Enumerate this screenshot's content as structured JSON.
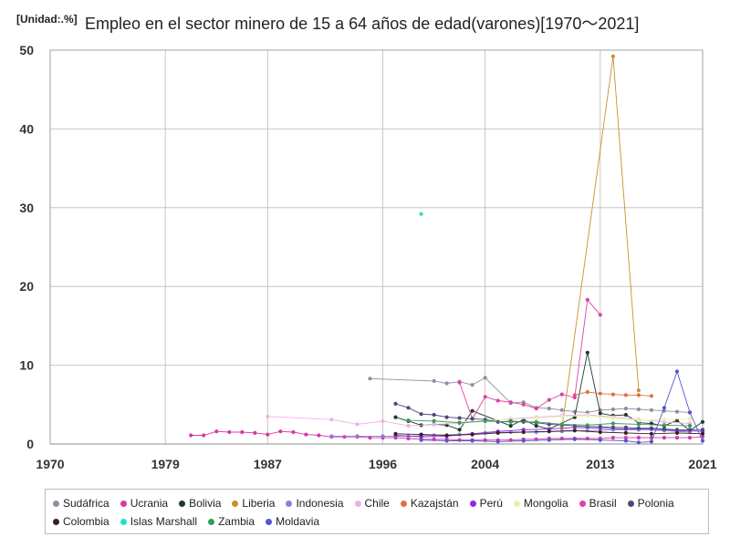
{
  "chart_data": {
    "type": "line",
    "unit_label": "[Unidad:.%]",
    "title": "Empleo en el sector minero de 15 a 64 años de edad(varones)[1970～2021]",
    "xlabel": "",
    "ylabel": "",
    "xlim": [
      1970,
      2021
    ],
    "ylim": [
      0,
      50
    ],
    "xticks": [
      "1970",
      "1979",
      "1987",
      "1996",
      "2004",
      "2013",
      "2021"
    ],
    "yticks": [
      "0",
      "10",
      "20",
      "30",
      "40",
      "50"
    ],
    "grid": true,
    "legend_position": "bottom",
    "series": [
      {
        "name": "Sudáfrica",
        "color": "#8c8fa1",
        "points": [
          [
            1995,
            8.3
          ],
          [
            2000,
            8.0
          ],
          [
            2001,
            7.7
          ],
          [
            2002,
            7.9
          ],
          [
            2003,
            7.5
          ],
          [
            2004,
            8.4
          ],
          [
            2006,
            5.2
          ],
          [
            2007,
            5.3
          ],
          [
            2008,
            4.6
          ],
          [
            2009,
            4.5
          ],
          [
            2010,
            4.3
          ],
          [
            2011,
            4.1
          ],
          [
            2012,
            4.0
          ],
          [
            2013,
            4.3
          ],
          [
            2014,
            4.4
          ],
          [
            2015,
            4.5
          ],
          [
            2016,
            4.4
          ],
          [
            2017,
            4.3
          ],
          [
            2018,
            4.2
          ],
          [
            2019,
            4.1
          ],
          [
            2020,
            4.0
          ]
        ]
      },
      {
        "name": "Ucrania",
        "color": "#d63aa6",
        "points": [
          [
            1981,
            1.1
          ],
          [
            1982,
            1.1
          ],
          [
            1983,
            1.6
          ],
          [
            1984,
            1.5
          ],
          [
            1985,
            1.5
          ],
          [
            1986,
            1.4
          ],
          [
            1987,
            1.2
          ],
          [
            1988,
            1.6
          ],
          [
            1989,
            1.5
          ],
          [
            1990,
            1.2
          ],
          [
            1991,
            1.1
          ],
          [
            1992,
            0.9
          ],
          [
            1993,
            0.9
          ],
          [
            1994,
            0.9
          ],
          [
            1995,
            0.8
          ],
          [
            1996,
            0.8
          ],
          [
            1997,
            0.8
          ],
          [
            1998,
            0.7
          ],
          [
            1999,
            0.6
          ],
          [
            2000,
            0.6
          ],
          [
            2001,
            0.6
          ],
          [
            2002,
            0.5
          ],
          [
            2003,
            0.5
          ],
          [
            2004,
            0.5
          ],
          [
            2005,
            0.5
          ],
          [
            2006,
            0.5
          ],
          [
            2007,
            0.6
          ],
          [
            2008,
            0.6
          ],
          [
            2009,
            0.7
          ],
          [
            2010,
            0.7
          ],
          [
            2011,
            0.7
          ],
          [
            2012,
            0.7
          ],
          [
            2013,
            0.7
          ],
          [
            2014,
            0.8
          ],
          [
            2015,
            0.8
          ],
          [
            2016,
            0.8
          ],
          [
            2017,
            0.8
          ],
          [
            2018,
            0.8
          ],
          [
            2019,
            0.8
          ],
          [
            2020,
            0.8
          ],
          [
            2021,
            0.9
          ]
        ]
      },
      {
        "name": "Bolivia",
        "color": "#1f3a2a",
        "points": [
          [
            1997,
            3.4
          ],
          [
            1998,
            2.9
          ],
          [
            1999,
            2.4
          ],
          [
            2000,
            2.5
          ],
          [
            2001,
            2.4
          ],
          [
            2002,
            1.8
          ],
          [
            2003,
            4.2
          ],
          [
            2006,
            2.3
          ],
          [
            2007,
            3.1
          ],
          [
            2008,
            2.3
          ],
          [
            2009,
            1.9
          ],
          [
            2011,
            3.4
          ],
          [
            2012,
            11.6
          ],
          [
            2013,
            3.9
          ],
          [
            2014,
            3.6
          ],
          [
            2015,
            3.7
          ],
          [
            2016,
            2.7
          ],
          [
            2017,
            2.6
          ],
          [
            2018,
            2.3
          ],
          [
            2019,
            3.0
          ],
          [
            2020,
            1.7
          ],
          [
            2021,
            2.8
          ]
        ]
      },
      {
        "name": "Liberia",
        "color": "#c8902a",
        "points": [
          [
            2010,
            2.0
          ],
          [
            2014,
            49.2
          ],
          [
            2016,
            6.8
          ]
        ]
      },
      {
        "name": "Indonesia",
        "color": "#8a7fd6",
        "points": [
          [
            1992,
            1.0
          ],
          [
            1994,
            1.0
          ],
          [
            1996,
            1.0
          ],
          [
            1998,
            1.0
          ],
          [
            2000,
            1.1
          ],
          [
            2002,
            1.2
          ],
          [
            2004,
            1.4
          ],
          [
            2006,
            1.5
          ],
          [
            2008,
            1.5
          ],
          [
            2010,
            1.6
          ],
          [
            2012,
            1.7
          ],
          [
            2014,
            1.8
          ],
          [
            2016,
            1.8
          ],
          [
            2018,
            1.7
          ],
          [
            2020,
            1.5
          ]
        ]
      },
      {
        "name": "Chile",
        "color": "#f0b0e6",
        "points": [
          [
            1987,
            3.5
          ],
          [
            1992,
            3.1
          ],
          [
            1994,
            2.5
          ],
          [
            1996,
            2.9
          ],
          [
            1998,
            2.3
          ],
          [
            2000,
            2.5
          ],
          [
            2002,
            2.6
          ],
          [
            2004,
            2.9
          ],
          [
            2006,
            3.2
          ],
          [
            2008,
            3.4
          ],
          [
            2010,
            3.6
          ],
          [
            2012,
            3.7
          ],
          [
            2014,
            3.4
          ],
          [
            2016,
            3.1
          ],
          [
            2018,
            2.8
          ],
          [
            2020,
            2.6
          ]
        ]
      },
      {
        "name": "Kazajstán",
        "color": "#e07040",
        "points": [
          [
            2011,
            6.2
          ],
          [
            2012,
            6.6
          ],
          [
            2013,
            6.4
          ],
          [
            2014,
            6.3
          ],
          [
            2015,
            6.2
          ],
          [
            2016,
            6.2
          ],
          [
            2017,
            6.1
          ]
        ]
      },
      {
        "name": "Perú",
        "color": "#8a2be2",
        "points": [
          [
            1997,
            1.1
          ],
          [
            1999,
            0.9
          ],
          [
            2001,
            1.0
          ],
          [
            2003,
            1.3
          ],
          [
            2005,
            1.6
          ],
          [
            2007,
            1.8
          ],
          [
            2009,
            1.9
          ],
          [
            2011,
            2.1
          ],
          [
            2013,
            2.0
          ],
          [
            2015,
            1.9
          ],
          [
            2017,
            1.9
          ],
          [
            2019,
            1.7
          ],
          [
            2021,
            1.6
          ]
        ]
      },
      {
        "name": "Mongolia",
        "color": "#e8f0b0",
        "points": [
          [
            2000,
            3.0
          ],
          [
            2002,
            2.8
          ],
          [
            2004,
            3.0
          ],
          [
            2006,
            3.1
          ],
          [
            2008,
            3.3
          ],
          [
            2010,
            3.5
          ],
          [
            2012,
            3.6
          ],
          [
            2014,
            3.3
          ],
          [
            2016,
            3.0
          ],
          [
            2018,
            3.1
          ],
          [
            2020,
            3.2
          ]
        ]
      },
      {
        "name": "Brasil",
        "color": "#e040a8",
        "points": [
          [
            2002,
            7.8
          ],
          [
            2003,
            3.2
          ],
          [
            2004,
            6.0
          ],
          [
            2005,
            5.5
          ],
          [
            2006,
            5.3
          ],
          [
            2007,
            5.0
          ],
          [
            2008,
            4.5
          ],
          [
            2009,
            5.6
          ],
          [
            2010,
            6.3
          ],
          [
            2011,
            5.9
          ],
          [
            2012,
            18.3
          ],
          [
            2013,
            16.4
          ]
        ]
      },
      {
        "name": "Polonia",
        "color": "#4a4a78",
        "points": [
          [
            1997,
            5.1
          ],
          [
            1998,
            4.6
          ],
          [
            1999,
            3.8
          ],
          [
            2000,
            3.7
          ],
          [
            2001,
            3.4
          ],
          [
            2002,
            3.3
          ],
          [
            2003,
            3.2
          ],
          [
            2004,
            3.1
          ],
          [
            2005,
            2.8
          ],
          [
            2006,
            2.9
          ],
          [
            2007,
            2.8
          ],
          [
            2008,
            2.7
          ],
          [
            2009,
            2.5
          ],
          [
            2010,
            2.4
          ],
          [
            2011,
            2.3
          ],
          [
            2012,
            2.2
          ],
          [
            2013,
            2.2
          ],
          [
            2014,
            2.1
          ],
          [
            2015,
            2.1
          ],
          [
            2016,
            2.0
          ],
          [
            2017,
            2.0
          ],
          [
            2018,
            1.9
          ],
          [
            2019,
            1.8
          ],
          [
            2020,
            1.8
          ],
          [
            2021,
            1.8
          ]
        ]
      },
      {
        "name": "Colombia",
        "color": "#3a1f1f",
        "points": [
          [
            1997,
            1.3
          ],
          [
            1999,
            1.2
          ],
          [
            2001,
            1.1
          ],
          [
            2003,
            1.2
          ],
          [
            2005,
            1.4
          ],
          [
            2007,
            1.5
          ],
          [
            2009,
            1.6
          ],
          [
            2011,
            1.7
          ],
          [
            2013,
            1.5
          ],
          [
            2015,
            1.4
          ],
          [
            2017,
            1.3
          ],
          [
            2019,
            1.4
          ],
          [
            2021,
            1.3
          ]
        ]
      },
      {
        "name": "Islas Marshall",
        "color": "#20e0c8",
        "points": [
          [
            1999,
            29.2
          ]
        ]
      },
      {
        "name": "Zambia",
        "color": "#3a9a5a",
        "points": [
          [
            1998,
            3.0
          ],
          [
            2000,
            2.9
          ],
          [
            2002,
            2.7
          ],
          [
            2004,
            2.9
          ],
          [
            2006,
            2.8
          ],
          [
            2008,
            2.8
          ],
          [
            2010,
            2.5
          ],
          [
            2012,
            2.4
          ],
          [
            2014,
            2.6
          ],
          [
            2016,
            2.5
          ],
          [
            2018,
            2.4
          ],
          [
            2020,
            2.3
          ]
        ]
      },
      {
        "name": "Moldavia",
        "color": "#5555cc",
        "points": [
          [
            1999,
            0.5
          ],
          [
            2001,
            0.4
          ],
          [
            2003,
            0.4
          ],
          [
            2005,
            0.3
          ],
          [
            2007,
            0.4
          ],
          [
            2009,
            0.5
          ],
          [
            2011,
            0.6
          ],
          [
            2013,
            0.5
          ],
          [
            2015,
            0.4
          ],
          [
            2016,
            0.2
          ],
          [
            2017,
            0.3
          ],
          [
            2018,
            4.6
          ],
          [
            2019,
            9.2
          ],
          [
            2020,
            4.0
          ],
          [
            2021,
            0.4
          ]
        ]
      }
    ]
  }
}
